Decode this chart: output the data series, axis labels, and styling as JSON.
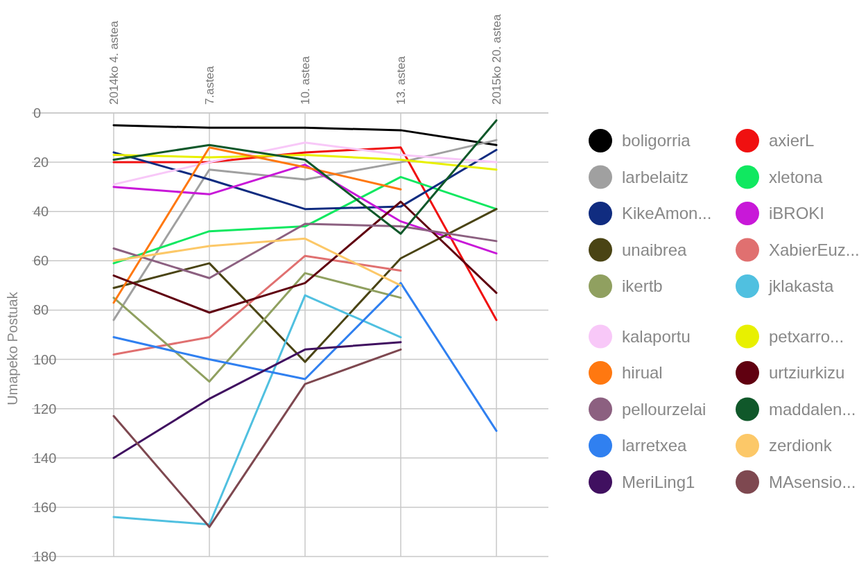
{
  "chart_data": {
    "type": "line",
    "ylabel": "Umapeko Postuak",
    "categories": [
      "2014ko 4. astea",
      "7.astea",
      "10. astea",
      "13. astea",
      "2015ko 20. astea"
    ],
    "ylim": [
      180,
      0
    ],
    "yticks": [
      0,
      20,
      40,
      60,
      80,
      100,
      120,
      140,
      160,
      180
    ],
    "grid": true,
    "legend": "right",
    "marker": "none",
    "line_style": "solid",
    "series": [
      {
        "name": "boligorria",
        "color": "#000000",
        "values": [
          5,
          6,
          6,
          7,
          13
        ]
      },
      {
        "name": "axierL",
        "color": "#f01010",
        "values": [
          20,
          20,
          16,
          14,
          84
        ]
      },
      {
        "name": "larbelaitz",
        "color": "#a0a0a0",
        "values": [
          84,
          23,
          27,
          20,
          11
        ]
      },
      {
        "name": "xletona",
        "color": "#10e860",
        "values": [
          61,
          48,
          46,
          26,
          39
        ]
      },
      {
        "name": "KikeAmon...",
        "color": "#102c80",
        "values": [
          16,
          27,
          39,
          38,
          15
        ]
      },
      {
        "name": "iBROKI",
        "color": "#c818d8",
        "values": [
          30,
          33,
          21,
          44,
          57
        ]
      },
      {
        "name": "unaibrea",
        "color": "#4a4414",
        "values": [
          71,
          61,
          101,
          59,
          39
        ]
      },
      {
        "name": "XabierEuz...",
        "color": "#e07070",
        "values": [
          98,
          91,
          58,
          64,
          null
        ]
      },
      {
        "name": "ikertb",
        "color": "#90a060",
        "values": [
          75,
          109,
          65,
          75,
          null
        ]
      },
      {
        "name": "jklakasta",
        "color": "#50c0e0",
        "values": [
          164,
          167,
          74,
          91,
          null
        ]
      },
      {
        "name": "kalaportu",
        "color": "#f8c8f8",
        "values": [
          29,
          20,
          12,
          17,
          20
        ]
      },
      {
        "name": "petxarro...",
        "color": "#e8f000",
        "values": [
          17,
          18,
          17,
          19,
          23
        ]
      },
      {
        "name": "hirual",
        "color": "#ff7810",
        "values": [
          77,
          14,
          22,
          31,
          null
        ]
      },
      {
        "name": "urtziurkizu",
        "color": "#600010",
        "values": [
          66,
          81,
          69,
          36,
          73
        ]
      },
      {
        "name": "pellourzelai",
        "color": "#8c6080",
        "values": [
          55,
          67,
          45,
          46,
          52
        ]
      },
      {
        "name": "maddalen...",
        "color": "#10582a",
        "values": [
          19,
          13,
          19,
          49,
          3
        ]
      },
      {
        "name": "larretxea",
        "color": "#3080f0",
        "values": [
          91,
          100,
          108,
          69,
          129
        ]
      },
      {
        "name": "zerdionk",
        "color": "#fcc868",
        "values": [
          60,
          54,
          51,
          70,
          null
        ]
      },
      {
        "name": "MeriLing1",
        "color": "#401060",
        "values": [
          140,
          116,
          96,
          93,
          null
        ]
      },
      {
        "name": "MAsensio...",
        "color": "#7e4850",
        "values": [
          123,
          168,
          110,
          96,
          null
        ]
      }
    ]
  }
}
